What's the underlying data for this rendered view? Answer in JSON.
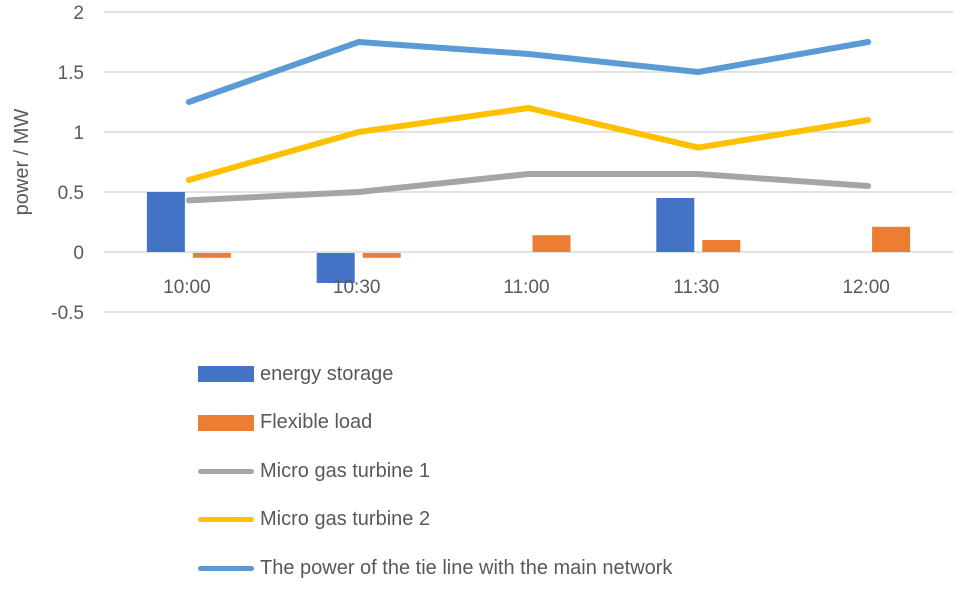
{
  "chart_data": {
    "type": "bar+line",
    "title": "",
    "xlabel": "",
    "ylabel": "power / MW",
    "ylim": [
      -0.5,
      2
    ],
    "yticks": [
      "2",
      "1.5",
      "1",
      "0.5",
      "0",
      "-0.5"
    ],
    "grid": true,
    "legend_position": "bottom",
    "categories": [
      "10:00",
      "10:30",
      "11:00",
      "11:30",
      "12:00"
    ],
    "series": [
      {
        "name": "energy storage",
        "type": "bar",
        "color": "#4472C4",
        "values": [
          0.5,
          -0.25,
          0,
          0.45,
          0
        ]
      },
      {
        "name": "Flexible load",
        "type": "bar",
        "color": "#ED7D31",
        "values": [
          -0.04,
          -0.04,
          0.14,
          0.1,
          0.21
        ]
      },
      {
        "name": "Micro gas turbine 1",
        "type": "line",
        "color": "#A5A5A5",
        "values": [
          0.43,
          0.5,
          0.65,
          0.65,
          0.55
        ]
      },
      {
        "name": "Micro gas turbine 2",
        "type": "line",
        "color": "#FFC000",
        "values": [
          0.6,
          1.0,
          1.2,
          0.87,
          1.1
        ]
      },
      {
        "name": "The power of the tie line with the main network",
        "type": "line",
        "color": "#5B9BD5",
        "values": [
          1.25,
          1.75,
          1.65,
          1.5,
          1.75
        ]
      }
    ]
  },
  "legend": {
    "items": [
      {
        "label": "energy storage",
        "kind": "box",
        "color": "#4472C4"
      },
      {
        "label": "Flexible load",
        "kind": "box",
        "color": "#ED7D31"
      },
      {
        "label": "Micro gas turbine 1",
        "kind": "line",
        "color": "#A5A5A5"
      },
      {
        "label": "Micro gas turbine 2",
        "kind": "line",
        "color": "#FFC000"
      },
      {
        "label": "The power of the tie line with the main network",
        "kind": "line",
        "color": "#5B9BD5"
      }
    ]
  }
}
